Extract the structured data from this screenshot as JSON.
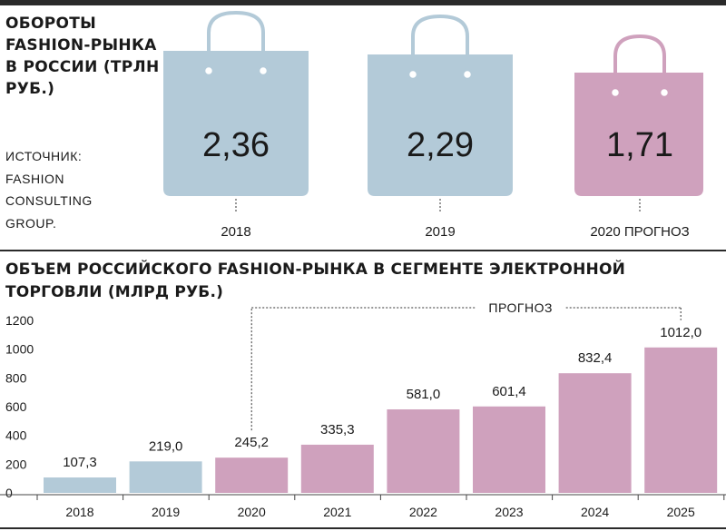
{
  "top": {
    "title": "ОБОРОТЫ FASHION-РЫНКА В РОССИИ (ТРЛН РУБ.)",
    "source": "ИСТОЧНИК: FASHION CONSULTING GROUP."
  },
  "bottom": {
    "title": "ОБЪЕМ РОССИЙСКОГО FASHION-РЫНКА В СЕГМЕНТЕ ЭЛЕКТРОННОЙ ТОРГОВЛИ (МЛРД РУБ.)",
    "forecast_label": "ПРОГНОЗ"
  },
  "colors": {
    "actual": "#b3cad8",
    "forecast": "#cfa1bd",
    "text": "#1a1a1a"
  },
  "chart_data": [
    {
      "type": "bar",
      "title": "ОБОРОТЫ FASHION-РЫНКА В РОССИИ (ТРЛН РУБ.)",
      "categories": [
        "2018",
        "2019",
        "2020 ПРОГНОЗ"
      ],
      "values": [
        2.36,
        2.29,
        1.71
      ],
      "value_labels": [
        "2,36",
        "2,29",
        "1,71"
      ],
      "forecast": [
        false,
        false,
        true
      ],
      "mark": "shopping-bag-icon"
    },
    {
      "type": "bar",
      "title": "ОБЪЕМ РОССИЙСКОГО FASHION-РЫНКА В СЕГМЕНТЕ ЭЛЕКТРОННОЙ ТОРГОВЛИ (МЛРД РУБ.)",
      "categories": [
        "2018",
        "2019",
        "2020",
        "2021",
        "2022",
        "2023",
        "2024",
        "2025"
      ],
      "values": [
        107.3,
        219.0,
        245.2,
        335.3,
        581.0,
        601.4,
        832.4,
        1012.0
      ],
      "value_labels": [
        "107,3",
        "219,0",
        "245,2",
        "335,3",
        "581,0",
        "601,4",
        "832,4",
        "1012,0"
      ],
      "forecast": [
        false,
        false,
        true,
        true,
        true,
        true,
        true,
        true
      ],
      "ylim": [
        0,
        1200
      ],
      "yticks": [
        0,
        200,
        400,
        600,
        800,
        1000,
        1200
      ],
      "grid": false,
      "annotation": "ПРОГНОЗ"
    }
  ]
}
